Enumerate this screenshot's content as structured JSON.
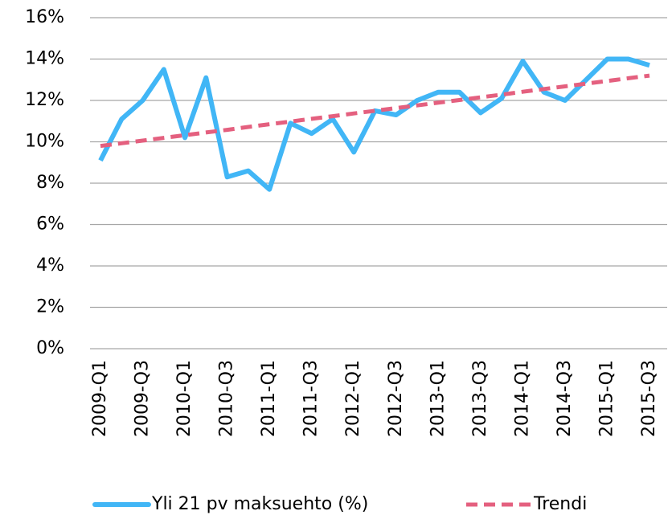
{
  "chart_data": {
    "type": "line",
    "categories": [
      "2009-Q1",
      null,
      "2009-Q3",
      null,
      "2010-Q1",
      null,
      "2010-Q3",
      null,
      "2011-Q1",
      null,
      "2011-Q3",
      null,
      "2012-Q1",
      null,
      "2012-Q3",
      null,
      "2013-Q1",
      null,
      "2013-Q3",
      null,
      "2014-Q1",
      null,
      "2014-Q3",
      null,
      "2015-Q1",
      null,
      "2015-Q3"
    ],
    "series": [
      {
        "name": "Yli 21 pv maksuehto (%)",
        "color": "#41b6f6",
        "dash": false,
        "values": [
          9.1,
          11.1,
          12.0,
          13.5,
          10.2,
          13.1,
          8.3,
          8.6,
          7.7,
          10.9,
          10.4,
          11.1,
          9.5,
          11.5,
          11.3,
          12.0,
          12.4,
          12.4,
          11.4,
          12.1,
          13.9,
          12.4,
          12.0,
          13.0,
          14.0,
          14.0,
          13.7
        ]
      },
      {
        "name": "Trendi",
        "color": "#e4607f",
        "dash": true,
        "values": [
          9.8,
          9.93,
          10.06,
          10.19,
          10.32,
          10.45,
          10.58,
          10.72,
          10.85,
          10.98,
          11.11,
          11.24,
          11.37,
          11.5,
          11.63,
          11.76,
          11.89,
          12.02,
          12.15,
          12.28,
          12.42,
          12.55,
          12.68,
          12.81,
          12.94,
          13.07,
          13.2
        ]
      }
    ],
    "ylim": [
      0,
      16
    ],
    "yticks": [
      {
        "value": 0,
        "label": "0%"
      },
      {
        "value": 2,
        "label": "2%"
      },
      {
        "value": 4,
        "label": "4%"
      },
      {
        "value": 6,
        "label": "6%"
      },
      {
        "value": 8,
        "label": "8%"
      },
      {
        "value": 10,
        "label": "10%"
      },
      {
        "value": 12,
        "label": "12%"
      },
      {
        "value": 14,
        "label": "14%"
      },
      {
        "value": 16,
        "label": "16%"
      }
    ],
    "grid": true,
    "legend": "bottom"
  }
}
